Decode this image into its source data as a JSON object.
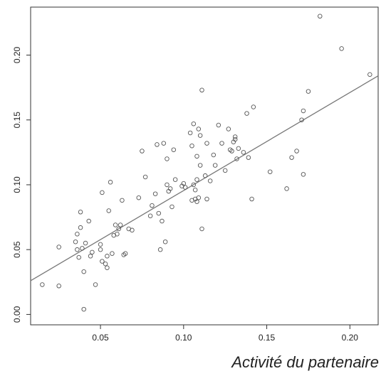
{
  "chart_data": {
    "type": "scatter",
    "title": "",
    "xlabel": "Activité du partenaire",
    "ylabel": "",
    "xlim": [
      0.008,
      0.217
    ],
    "ylim": [
      -0.008,
      0.237
    ],
    "x_ticks": [
      "0.05",
      "0.10",
      "0.15",
      "0.20"
    ],
    "y_ticks": [
      "0.00",
      "0.05",
      "0.10",
      "0.15",
      "0.20"
    ],
    "grid": false,
    "legend": "none",
    "colors": {
      "points": "#555555",
      "line": "#777777",
      "axis": "#333333"
    },
    "regression_line": {
      "x": [
        0.008,
        0.217
      ],
      "y": [
        0.026,
        0.184
      ]
    },
    "points": [
      {
        "x": 0.015,
        "y": 0.023
      },
      {
        "x": 0.025,
        "y": 0.052
      },
      {
        "x": 0.025,
        "y": 0.022
      },
      {
        "x": 0.035,
        "y": 0.056
      },
      {
        "x": 0.036,
        "y": 0.062
      },
      {
        "x": 0.036,
        "y": 0.05
      },
      {
        "x": 0.037,
        "y": 0.044
      },
      {
        "x": 0.038,
        "y": 0.067
      },
      {
        "x": 0.038,
        "y": 0.079
      },
      {
        "x": 0.039,
        "y": 0.051
      },
      {
        "x": 0.04,
        "y": 0.033
      },
      {
        "x": 0.04,
        "y": 0.004
      },
      {
        "x": 0.041,
        "y": 0.055
      },
      {
        "x": 0.043,
        "y": 0.072
      },
      {
        "x": 0.044,
        "y": 0.045
      },
      {
        "x": 0.045,
        "y": 0.048
      },
      {
        "x": 0.047,
        "y": 0.023
      },
      {
        "x": 0.05,
        "y": 0.05
      },
      {
        "x": 0.05,
        "y": 0.054
      },
      {
        "x": 0.051,
        "y": 0.041
      },
      {
        "x": 0.051,
        "y": 0.094
      },
      {
        "x": 0.053,
        "y": 0.039
      },
      {
        "x": 0.054,
        "y": 0.045
      },
      {
        "x": 0.054,
        "y": 0.036
      },
      {
        "x": 0.055,
        "y": 0.08
      },
      {
        "x": 0.056,
        "y": 0.102
      },
      {
        "x": 0.057,
        "y": 0.047
      },
      {
        "x": 0.058,
        "y": 0.061
      },
      {
        "x": 0.059,
        "y": 0.069
      },
      {
        "x": 0.06,
        "y": 0.062
      },
      {
        "x": 0.061,
        "y": 0.066
      },
      {
        "x": 0.062,
        "y": 0.069
      },
      {
        "x": 0.063,
        "y": 0.088
      },
      {
        "x": 0.064,
        "y": 0.046
      },
      {
        "x": 0.065,
        "y": 0.047
      },
      {
        "x": 0.067,
        "y": 0.066
      },
      {
        "x": 0.069,
        "y": 0.065
      },
      {
        "x": 0.073,
        "y": 0.09
      },
      {
        "x": 0.075,
        "y": 0.126
      },
      {
        "x": 0.077,
        "y": 0.106
      },
      {
        "x": 0.08,
        "y": 0.076
      },
      {
        "x": 0.081,
        "y": 0.084
      },
      {
        "x": 0.083,
        "y": 0.093
      },
      {
        "x": 0.084,
        "y": 0.131
      },
      {
        "x": 0.085,
        "y": 0.078
      },
      {
        "x": 0.086,
        "y": 0.05
      },
      {
        "x": 0.087,
        "y": 0.072
      },
      {
        "x": 0.088,
        "y": 0.132
      },
      {
        "x": 0.089,
        "y": 0.056
      },
      {
        "x": 0.09,
        "y": 0.1
      },
      {
        "x": 0.09,
        "y": 0.12
      },
      {
        "x": 0.091,
        "y": 0.095
      },
      {
        "x": 0.092,
        "y": 0.097
      },
      {
        "x": 0.093,
        "y": 0.083
      },
      {
        "x": 0.094,
        "y": 0.127
      },
      {
        "x": 0.095,
        "y": 0.104
      },
      {
        "x": 0.099,
        "y": 0.099
      },
      {
        "x": 0.1,
        "y": 0.101
      },
      {
        "x": 0.101,
        "y": 0.098
      },
      {
        "x": 0.104,
        "y": 0.14
      },
      {
        "x": 0.105,
        "y": 0.13
      },
      {
        "x": 0.105,
        "y": 0.088
      },
      {
        "x": 0.106,
        "y": 0.147
      },
      {
        "x": 0.106,
        "y": 0.1
      },
      {
        "x": 0.107,
        "y": 0.089
      },
      {
        "x": 0.107,
        "y": 0.096
      },
      {
        "x": 0.108,
        "y": 0.087
      },
      {
        "x": 0.108,
        "y": 0.104
      },
      {
        "x": 0.108,
        "y": 0.122
      },
      {
        "x": 0.109,
        "y": 0.09
      },
      {
        "x": 0.109,
        "y": 0.143
      },
      {
        "x": 0.11,
        "y": 0.138
      },
      {
        "x": 0.11,
        "y": 0.115
      },
      {
        "x": 0.111,
        "y": 0.066
      },
      {
        "x": 0.111,
        "y": 0.173
      },
      {
        "x": 0.113,
        "y": 0.107
      },
      {
        "x": 0.114,
        "y": 0.132
      },
      {
        "x": 0.114,
        "y": 0.089
      },
      {
        "x": 0.116,
        "y": 0.103
      },
      {
        "x": 0.118,
        "y": 0.123
      },
      {
        "x": 0.119,
        "y": 0.115
      },
      {
        "x": 0.121,
        "y": 0.146
      },
      {
        "x": 0.123,
        "y": 0.132
      },
      {
        "x": 0.125,
        "y": 0.111
      },
      {
        "x": 0.127,
        "y": 0.143
      },
      {
        "x": 0.128,
        "y": 0.127
      },
      {
        "x": 0.129,
        "y": 0.126
      },
      {
        "x": 0.13,
        "y": 0.133
      },
      {
        "x": 0.131,
        "y": 0.137
      },
      {
        "x": 0.131,
        "y": 0.135
      },
      {
        "x": 0.132,
        "y": 0.12
      },
      {
        "x": 0.133,
        "y": 0.128
      },
      {
        "x": 0.136,
        "y": 0.125
      },
      {
        "x": 0.138,
        "y": 0.155
      },
      {
        "x": 0.139,
        "y": 0.121
      },
      {
        "x": 0.141,
        "y": 0.089
      },
      {
        "x": 0.142,
        "y": 0.16
      },
      {
        "x": 0.152,
        "y": 0.11
      },
      {
        "x": 0.162,
        "y": 0.097
      },
      {
        "x": 0.165,
        "y": 0.121
      },
      {
        "x": 0.168,
        "y": 0.126
      },
      {
        "x": 0.171,
        "y": 0.15
      },
      {
        "x": 0.172,
        "y": 0.157
      },
      {
        "x": 0.172,
        "y": 0.108
      },
      {
        "x": 0.175,
        "y": 0.172
      },
      {
        "x": 0.182,
        "y": 0.23
      },
      {
        "x": 0.195,
        "y": 0.205
      },
      {
        "x": 0.212,
        "y": 0.185
      }
    ]
  }
}
